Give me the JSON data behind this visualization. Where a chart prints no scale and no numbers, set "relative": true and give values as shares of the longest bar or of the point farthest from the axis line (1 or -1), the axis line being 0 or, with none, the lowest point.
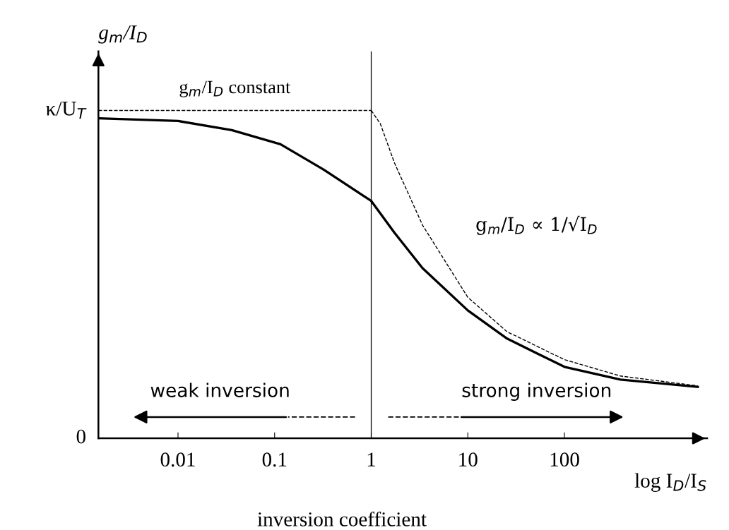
{
  "chart_data": {
    "type": "line",
    "relative": true,
    "xlabel": "log I$_{D}$/I$_{S}$",
    "ylabel": "g$_{m}$/I$_{D}$",
    "log": "x",
    "xlim": [
      0.0015,
      3000
    ],
    "xticks": [
      0.01,
      0.1,
      1,
      10,
      100
    ],
    "grid": false,
    "marker": "none",
    "series": [
      {
        "color": "#000000",
        "line_style": "solid",
        "x": [
          0.0015,
          0.01,
          0.036,
          0.115,
          0.32,
          1,
          1.74,
          3.4,
          10,
          25.5,
          100,
          380,
          2400
        ],
        "values": [
          0.976,
          0.968,
          0.94,
          0.897,
          0.82,
          0.724,
          0.627,
          0.519,
          0.39,
          0.304,
          0.218,
          0.179,
          0.157
        ]
      },
      {
        "color": "#000000",
        "line_style": "dashed",
        "x": [
          0.0015,
          1
        ],
        "values": [
          1,
          1
        ]
      },
      {
        "color": "#000000",
        "line_style": "dashed",
        "x": [
          1,
          1.24,
          1.74,
          3.4,
          10,
          25.5,
          100,
          380,
          2400
        ],
        "values": [
          1,
          0.96,
          0.84,
          0.65,
          0.43,
          0.325,
          0.24,
          0.19,
          0.16
        ]
      }
    ],
    "ref_lines": [
      {
        "axis": "x",
        "value": 1,
        "color": "#000000",
        "line_style": "solid"
      }
    ],
    "annotations": [
      "g$_{m}$/I$_{D}$ constant",
      "g$_{m}$/I$_{D}$ ∝ 1/√I$_{D}$",
      "weak inversion",
      "strong inversion",
      "inversion coefficient",
      "0",
      "κ/U$_{T}$"
    ]
  }
}
